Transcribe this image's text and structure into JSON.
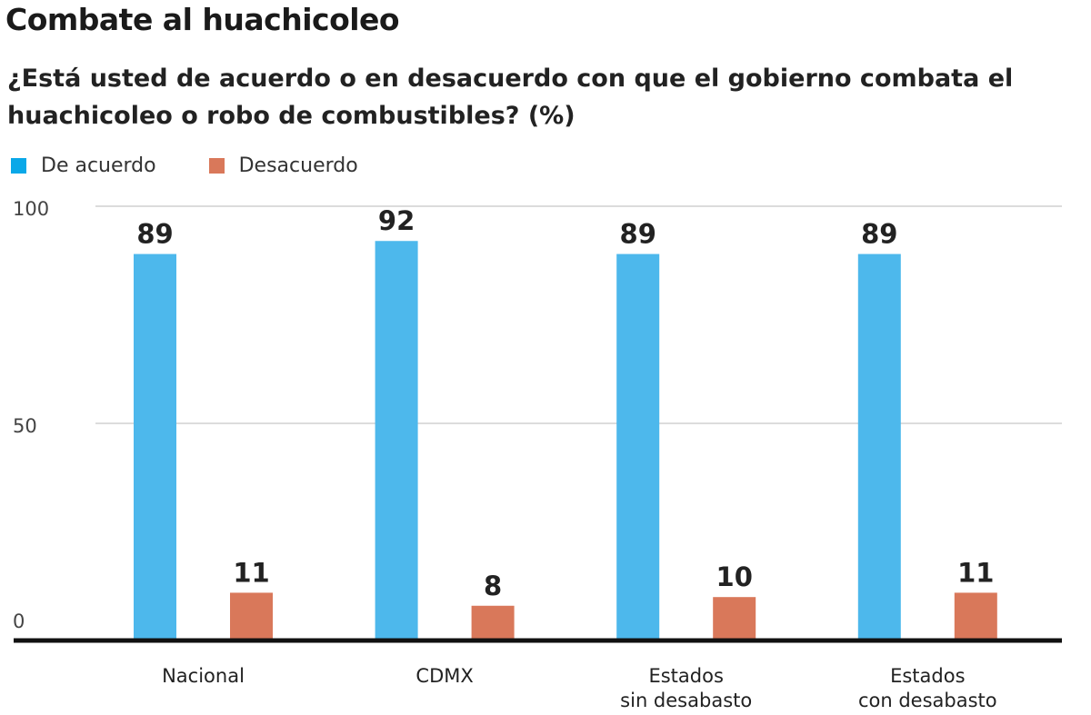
{
  "chart_data": {
    "type": "bar",
    "title": "Combate al huachicoleo",
    "subtitle": "¿Está usted de acuerdo o en desacuerdo con que el gobierno combata el huachicoleo o robo de combustibles? (%)",
    "categories": [
      [
        "Nacional"
      ],
      [
        "CDMX"
      ],
      [
        "Estados",
        "sin desabasto"
      ],
      [
        "Estados",
        "con desabasto"
      ]
    ],
    "series": [
      {
        "name": "De acuerdo",
        "color": "#4DB8EC",
        "legend_color": "#0AA8E8",
        "values": [
          89,
          92,
          89,
          89
        ]
      },
      {
        "name": "Desacuerdo",
        "color": "#D9785A",
        "legend_color": "#D9785A",
        "values": [
          11,
          8,
          10,
          11
        ]
      }
    ],
    "yticks": [
      "0",
      "50",
      "100"
    ],
    "ytick_values": [
      0,
      50,
      100
    ],
    "ylim": [
      0,
      100
    ],
    "grid": true,
    "legend": "top-left"
  }
}
